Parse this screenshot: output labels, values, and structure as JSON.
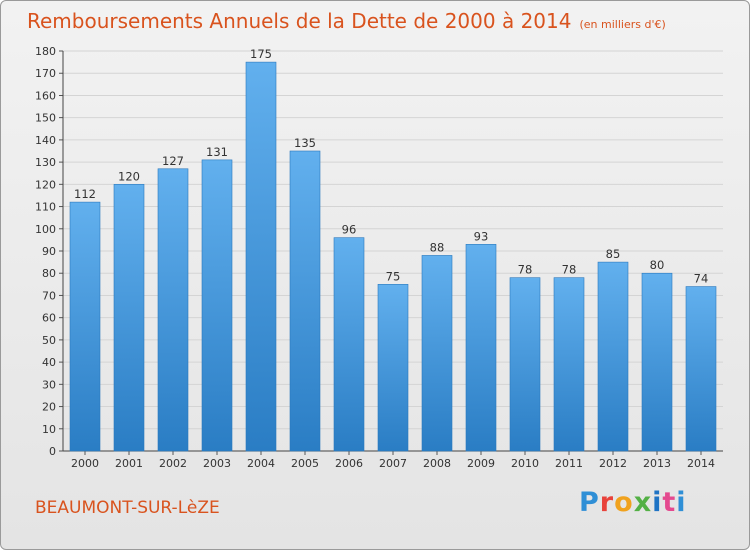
{
  "chart_data": {
    "type": "bar",
    "title": "Remboursements Annuels de la Dette de 2000 à 2014",
    "unit": "(en milliers d'€)",
    "categories": [
      "2000",
      "2001",
      "2002",
      "2003",
      "2004",
      "2005",
      "2006",
      "2007",
      "2008",
      "2009",
      "2010",
      "2011",
      "2012",
      "2013",
      "2014"
    ],
    "values": [
      112,
      120,
      127,
      131,
      175,
      135,
      96,
      75,
      88,
      93,
      78,
      78,
      85,
      80,
      74
    ],
    "ylim": [
      0,
      180
    ],
    "ytick_step": 10,
    "grid": true,
    "bar_color": "#4a9ee0",
    "xlabel": "",
    "ylabel": ""
  },
  "footer": {
    "commune": "BEAUMONT-SUR-LèZE",
    "logo_letters": [
      "P",
      "r",
      "o",
      "x",
      "i",
      "t",
      "i"
    ]
  }
}
